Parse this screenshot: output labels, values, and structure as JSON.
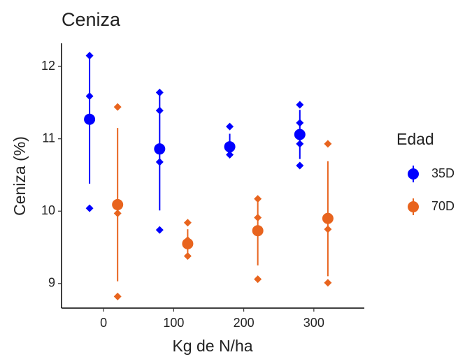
{
  "chart_data": {
    "type": "pointrange",
    "title": "Ceniza",
    "x_label": "Kg de N/ha",
    "y_label": "Ceniza (%)",
    "xlim": [
      -60,
      372
    ],
    "xticks": [
      0,
      100,
      200,
      300
    ],
    "ylim": [
      8.66,
      12.32
    ],
    "yticks": [
      9,
      10,
      11,
      12
    ],
    "legend_title": "Edad",
    "legend": "right",
    "series": [
      {
        "name": "35D",
        "color": "#0000ff",
        "x": [
          -20,
          80,
          180,
          280
        ],
        "values": [
          11.27,
          10.86,
          10.89,
          11.06
        ],
        "lower": [
          10.38,
          10.01,
          10.76,
          10.72
        ],
        "upper": [
          12.15,
          11.65,
          11.07,
          11.4
        ],
        "raw": [
          [
            12.15,
            11.59,
            10.04
          ],
          [
            11.64,
            11.39,
            10.68,
            9.74
          ],
          [
            11.17,
            10.84,
            10.78
          ],
          [
            11.47,
            11.22,
            10.93,
            10.63
          ]
        ]
      },
      {
        "name": "70D",
        "color": "#e8641e",
        "x": [
          20,
          120,
          220,
          320
        ],
        "values": [
          10.09,
          9.55,
          9.73,
          9.9
        ],
        "lower": [
          9.03,
          9.36,
          9.25,
          9.1
        ],
        "upper": [
          11.15,
          9.75,
          10.21,
          10.69
        ],
        "raw": [
          [
            11.44,
            9.97,
            8.82
          ],
          [
            9.84,
            9.6,
            9.38
          ],
          [
            10.17,
            9.91,
            9.06
          ],
          [
            10.93,
            9.75,
            9.01
          ]
        ]
      }
    ]
  }
}
